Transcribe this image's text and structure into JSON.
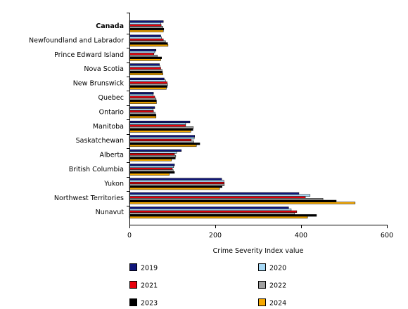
{
  "chart_data": {
    "type": "bar",
    "orientation": "horizontal",
    "categories": [
      "Canada",
      "Newfoundland and Labrador",
      "Prince Edward Island",
      "Nova Scotia",
      "New Brunswick",
      "Quebec",
      "Ontario",
      "Manitoba",
      "Saskatchewan",
      "Alberta",
      "British Columbia",
      "Yukon",
      "Northwest Territories",
      "Nunavut"
    ],
    "series": [
      {
        "name": "2019",
        "color": "#10167a",
        "values": [
          79,
          73,
          62,
          70,
          81,
          56,
          59,
          141,
          152,
          121,
          105,
          215,
          395,
          371
        ]
      },
      {
        "name": "2020",
        "color": "#a6d8f5",
        "values": [
          73,
          75,
          59,
          71,
          84,
          55,
          55,
          131,
          151,
          110,
          103,
          220,
          421,
          377
        ]
      },
      {
        "name": "2021",
        "color": "#e8000b",
        "values": [
          74,
          79,
          57,
          73,
          88,
          59,
          56,
          131,
          144,
          105,
          100,
          221,
          410,
          390
        ]
      },
      {
        "name": "2022",
        "color": "#a0a0a0",
        "values": [
          78,
          84,
          65,
          76,
          89,
          62,
          60,
          149,
          150,
          108,
          102,
          221,
          451,
          385
        ]
      },
      {
        "name": "2023",
        "color": "#000000",
        "values": [
          80,
          89,
          75,
          77,
          88,
          63,
          62,
          148,
          164,
          107,
          105,
          216,
          482,
          436
        ]
      },
      {
        "name": "2024",
        "color": "#f5a800",
        "values": [
          79,
          90,
          73,
          78,
          86,
          63,
          62,
          143,
          156,
          98,
          93,
          210,
          526,
          415
        ]
      }
    ],
    "xlabel": "Crime Severity Index value",
    "xlim": [
      0,
      600
    ],
    "xticks": [
      0,
      200,
      400,
      600
    ],
    "grid": false,
    "legend": "bottom"
  }
}
